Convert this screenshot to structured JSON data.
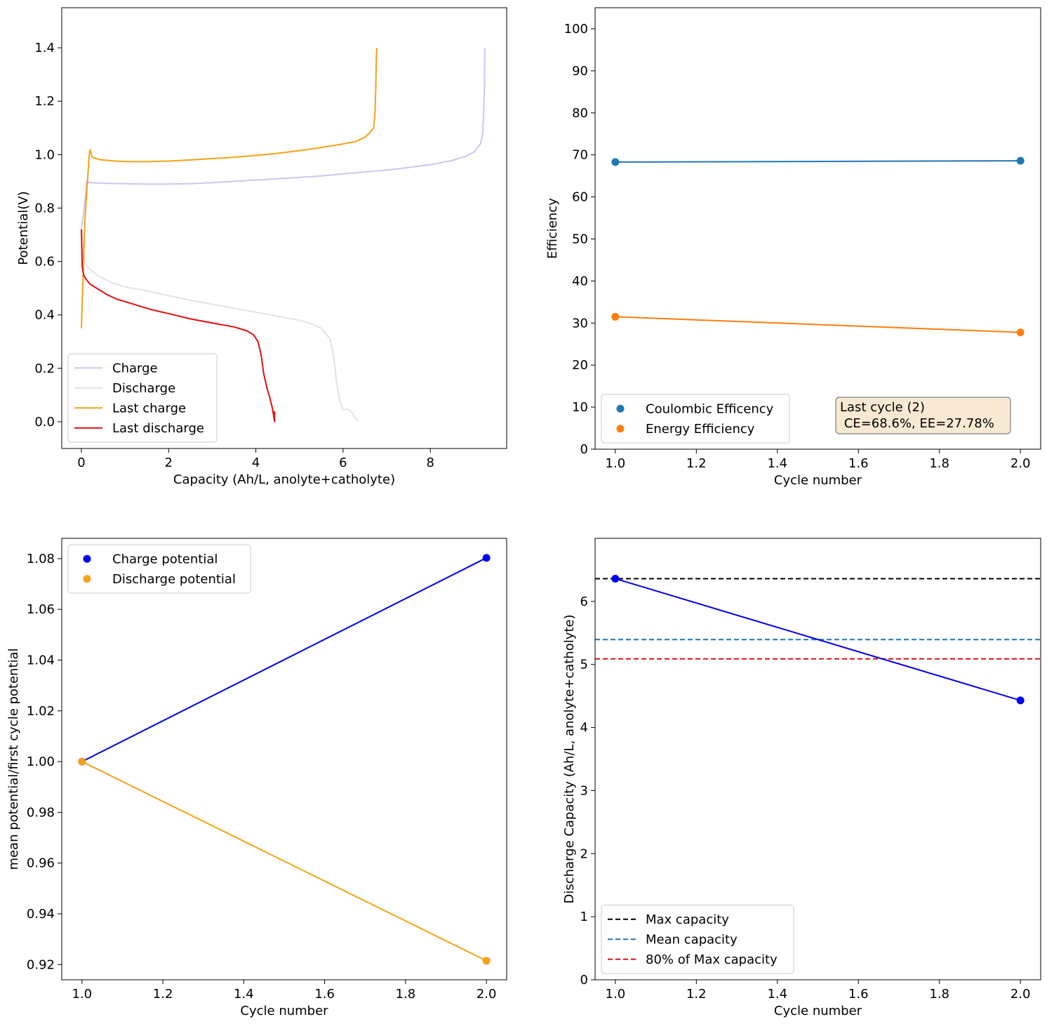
{
  "chart_data": [
    {
      "type": "line",
      "xlabel": "Capacity (Ah/L, anolyte+catholyte)",
      "ylabel": "Potential(V)",
      "xlim": [
        -0.45,
        9.75
      ],
      "ylim": [
        -0.1,
        1.55
      ],
      "xticks": [
        0,
        2,
        4,
        6,
        8
      ],
      "yticks": [
        0.0,
        0.2,
        0.4,
        0.6,
        0.8,
        1.0,
        1.2,
        1.4
      ],
      "xtick_labels": [
        "0",
        "2",
        "4",
        "6",
        "8"
      ],
      "ytick_labels": [
        "0.0",
        "0.2",
        "0.4",
        "0.6",
        "0.8",
        "1.0",
        "1.2",
        "1.4"
      ],
      "legend_position": "lower-left",
      "series": [
        {
          "name": "Charge",
          "color": "#ccc7ee",
          "style": "solid",
          "points": [
            [
              0,
              0.72
            ],
            [
              0.05,
              0.78
            ],
            [
              0.1,
              0.86
            ],
            [
              0.12,
              0.9
            ],
            [
              0.2,
              0.895
            ],
            [
              0.5,
              0.893
            ],
            [
              1,
              0.891
            ],
            [
              1.5,
              0.89
            ],
            [
              2,
              0.89
            ],
            [
              2.5,
              0.891
            ],
            [
              3,
              0.895
            ],
            [
              3.5,
              0.9
            ],
            [
              4,
              0.905
            ],
            [
              4.5,
              0.91
            ],
            [
              5,
              0.915
            ],
            [
              5.5,
              0.92
            ],
            [
              6,
              0.928
            ],
            [
              6.5,
              0.935
            ],
            [
              7,
              0.942
            ],
            [
              7.5,
              0.952
            ],
            [
              8,
              0.962
            ],
            [
              8.5,
              0.978
            ],
            [
              8.8,
              0.993
            ],
            [
              9,
              1.01
            ],
            [
              9.15,
              1.04
            ],
            [
              9.2,
              1.08
            ],
            [
              9.22,
              1.15
            ],
            [
              9.24,
              1.25
            ],
            [
              9.25,
              1.4
            ]
          ]
        },
        {
          "name": "Discharge",
          "color": "#e2e2e2",
          "style": "solid",
          "points": [
            [
              0,
              0.74
            ],
            [
              0.05,
              0.62
            ],
            [
              0.1,
              0.59
            ],
            [
              0.2,
              0.57
            ],
            [
              0.4,
              0.545
            ],
            [
              0.7,
              0.52
            ],
            [
              1,
              0.505
            ],
            [
              1.5,
              0.49
            ],
            [
              2,
              0.472
            ],
            [
              2.5,
              0.455
            ],
            [
              3,
              0.44
            ],
            [
              3.5,
              0.425
            ],
            [
              4,
              0.41
            ],
            [
              4.5,
              0.395
            ],
            [
              5,
              0.38
            ],
            [
              5.3,
              0.365
            ],
            [
              5.5,
              0.35
            ],
            [
              5.7,
              0.31
            ],
            [
              5.78,
              0.25
            ],
            [
              5.85,
              0.15
            ],
            [
              5.92,
              0.08
            ],
            [
              6,
              0.045
            ],
            [
              6.1,
              0.048
            ],
            [
              6.2,
              0.035
            ],
            [
              6.3,
              0.01
            ],
            [
              6.35,
              0.0
            ]
          ]
        },
        {
          "name": "Last charge",
          "color": "#f2a318",
          "style": "solid",
          "points": [
            [
              0,
              0.35
            ],
            [
              0.02,
              0.45
            ],
            [
              0.05,
              0.6
            ],
            [
              0.08,
              0.75
            ],
            [
              0.12,
              0.85
            ],
            [
              0.16,
              0.95
            ],
            [
              0.18,
              1.0
            ],
            [
              0.2,
              1.018
            ],
            [
              0.25,
              0.99
            ],
            [
              0.4,
              0.982
            ],
            [
              0.7,
              0.977
            ],
            [
              1,
              0.974
            ],
            [
              1.5,
              0.974
            ],
            [
              2,
              0.976
            ],
            [
              2.5,
              0.98
            ],
            [
              3,
              0.985
            ],
            [
              3.5,
              0.99
            ],
            [
              4,
              0.997
            ],
            [
              4.5,
              1.005
            ],
            [
              5,
              1.015
            ],
            [
              5.5,
              1.027
            ],
            [
              6,
              1.04
            ],
            [
              6.3,
              1.05
            ],
            [
              6.5,
              1.065
            ],
            [
              6.6,
              1.08
            ],
            [
              6.7,
              1.1
            ],
            [
              6.73,
              1.15
            ],
            [
              6.75,
              1.25
            ],
            [
              6.76,
              1.35
            ],
            [
              6.77,
              1.4
            ]
          ]
        },
        {
          "name": "Last discharge",
          "color": "#e01010",
          "style": "solid",
          "points": [
            [
              0,
              0.72
            ],
            [
              0.02,
              0.58
            ],
            [
              0.05,
              0.55
            ],
            [
              0.1,
              0.535
            ],
            [
              0.2,
              0.515
            ],
            [
              0.4,
              0.495
            ],
            [
              0.6,
              0.475
            ],
            [
              0.8,
              0.46
            ],
            [
              1,
              0.45
            ],
            [
              1.3,
              0.435
            ],
            [
              1.6,
              0.42
            ],
            [
              2,
              0.405
            ],
            [
              2.5,
              0.385
            ],
            [
              3,
              0.37
            ],
            [
              3.5,
              0.355
            ],
            [
              3.8,
              0.34
            ],
            [
              3.95,
              0.325
            ],
            [
              4.05,
              0.3
            ],
            [
              4.12,
              0.25
            ],
            [
              4.18,
              0.18
            ],
            [
              4.25,
              0.13
            ],
            [
              4.32,
              0.09
            ],
            [
              4.38,
              0.05
            ],
            [
              4.42,
              0.01
            ],
            [
              4.43,
              0.0
            ],
            [
              4.43,
              0.04
            ]
          ]
        }
      ]
    },
    {
      "type": "scatter",
      "xlabel": "Cycle number",
      "ylabel": "Efficiency",
      "xlim": [
        0.95,
        2.05
      ],
      "ylim": [
        0,
        105
      ],
      "xticks": [
        1.0,
        1.2,
        1.4,
        1.6,
        1.8,
        2.0
      ],
      "yticks": [
        0,
        10,
        20,
        30,
        40,
        50,
        60,
        70,
        80,
        90,
        100
      ],
      "xtick_labels": [
        "1.0",
        "1.2",
        "1.4",
        "1.6",
        "1.8",
        "2.0"
      ],
      "ytick_labels": [
        "0",
        "10",
        "20",
        "30",
        "40",
        "50",
        "60",
        "70",
        "80",
        "90",
        "100"
      ],
      "legend_position": "lower-left",
      "series": [
        {
          "name": "Coulombic Efficency",
          "color": "#1f77b4",
          "markers": true,
          "points": [
            [
              1,
              68.3
            ],
            [
              2,
              68.6
            ]
          ]
        },
        {
          "name": "Energy Efficiency",
          "color": "#ff7f0e",
          "markers": true,
          "points": [
            [
              1,
              31.5
            ],
            [
              2,
              27.78
            ]
          ]
        }
      ],
      "annotation": {
        "line1": "Last cycle (2)",
        "line2": " CE=68.6%, EE=27.78%",
        "fill": "#f8e9d2",
        "edge": "#7f7f7f"
      }
    },
    {
      "type": "scatter",
      "xlabel": "Cycle number",
      "ylabel": "mean potential/first cycle potential",
      "xlim": [
        0.95,
        2.05
      ],
      "ylim": [
        0.914,
        1.088
      ],
      "xticks": [
        1.0,
        1.2,
        1.4,
        1.6,
        1.8,
        2.0
      ],
      "yticks": [
        0.92,
        0.94,
        0.96,
        0.98,
        1.0,
        1.02,
        1.04,
        1.06,
        1.08
      ],
      "xtick_labels": [
        "1.0",
        "1.2",
        "1.4",
        "1.6",
        "1.8",
        "2.0"
      ],
      "ytick_labels": [
        "0.92",
        "0.94",
        "0.96",
        "0.98",
        "1.00",
        "1.02",
        "1.04",
        "1.06",
        "1.08"
      ],
      "legend_position": "upper-left",
      "series": [
        {
          "name": "Charge potential",
          "color": "#0000ee",
          "markers": true,
          "points": [
            [
              1,
              1.0
            ],
            [
              2,
              1.0803
            ]
          ]
        },
        {
          "name": "Discharge potential",
          "color": "#f2a318",
          "markers": true,
          "points": [
            [
              1,
              1.0
            ],
            [
              2,
              0.9215
            ]
          ]
        }
      ]
    },
    {
      "type": "line",
      "xlabel": "Cycle number",
      "ylabel": "Discharge Capacity (Ah/L, anolyte+catholyte)",
      "xlim": [
        0.95,
        2.05
      ],
      "ylim": [
        0,
        7.0
      ],
      "xticks": [
        1.0,
        1.2,
        1.4,
        1.6,
        1.8,
        2.0
      ],
      "yticks": [
        0,
        1,
        2,
        3,
        4,
        5,
        6
      ],
      "xtick_labels": [
        "1.0",
        "1.2",
        "1.4",
        "1.6",
        "1.8",
        "2.0"
      ],
      "ytick_labels": [
        "0",
        "1",
        "2",
        "3",
        "4",
        "5",
        "6"
      ],
      "legend_position": "lower-left",
      "series": [
        {
          "name": "Discharge capacity",
          "color": "#0000ee",
          "markers": true,
          "in_legend": false,
          "points": [
            [
              1,
              6.36
            ],
            [
              2,
              4.43
            ]
          ]
        }
      ],
      "hlines": [
        {
          "name": "Max capacity",
          "color": "#000000",
          "value": 6.36
        },
        {
          "name": "Mean capacity",
          "color": "#1f77b4",
          "value": 5.395
        },
        {
          "name": "80% of Max capacity",
          "color": "#e01010",
          "value": 5.088
        }
      ]
    }
  ]
}
